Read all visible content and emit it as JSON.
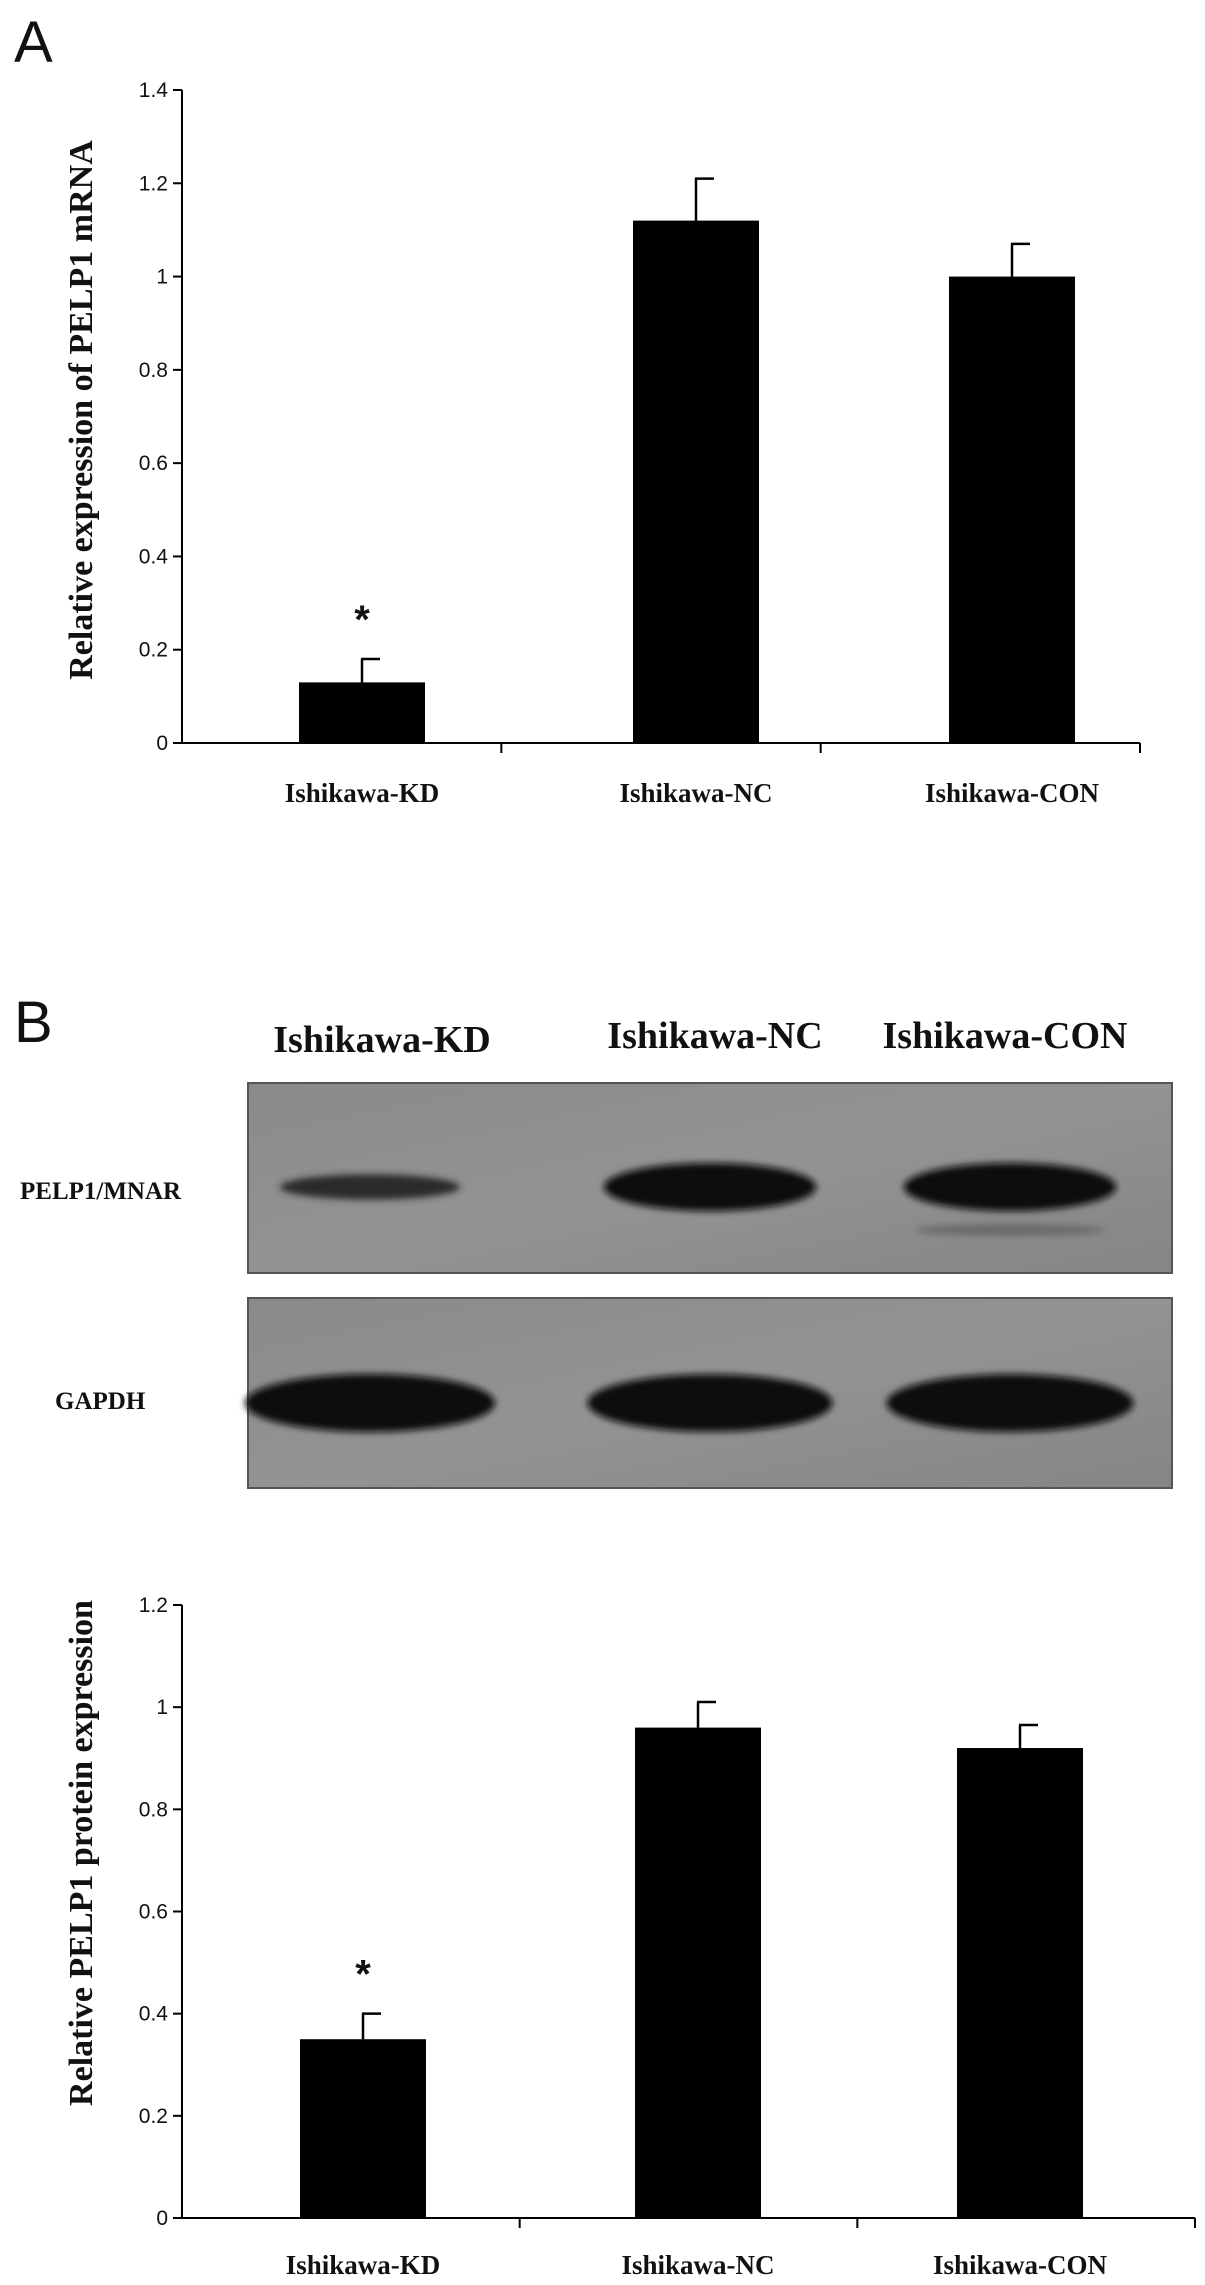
{
  "panels": {
    "a": {
      "letter": "A"
    },
    "b": {
      "letter": "B"
    }
  },
  "chart_data": [
    {
      "type": "bar",
      "panel": "A",
      "categories": [
        "Ishikawa-KD",
        "Ishikawa-NC",
        "Ishikawa-CON"
      ],
      "values": [
        0.13,
        1.12,
        1.0
      ],
      "errors": [
        0.05,
        0.09,
        0.07
      ],
      "significance": [
        "*",
        "",
        ""
      ],
      "ylabel": "Relative expression of PELP1 mRNA",
      "ylim": [
        0,
        1.4
      ],
      "yticks": [
        0,
        0.2,
        0.4,
        0.6,
        0.8,
        1,
        1.2,
        1.4
      ],
      "bar_color": "#000000"
    },
    {
      "type": "bar",
      "panel": "B",
      "categories": [
        "Ishikawa-KD",
        "Ishikawa-NC",
        "Ishikawa-CON"
      ],
      "values": [
        0.35,
        0.96,
        0.92
      ],
      "errors": [
        0.05,
        0.05,
        0.045
      ],
      "significance": [
        "*",
        "",
        ""
      ],
      "ylabel": "Relative PELP1 protein expression",
      "ylim": [
        0,
        1.2
      ],
      "yticks": [
        0,
        0.2,
        0.4,
        0.6,
        0.8,
        1,
        1.2
      ],
      "bar_color": "#000000"
    }
  ],
  "blot": {
    "lanes": [
      "Ishikawa-KD",
      "Ishikawa-NC",
      "Ishikawa-CON"
    ],
    "rows": [
      {
        "label": "PELP1/MNAR",
        "intensities": [
          0.35,
          0.95,
          0.95
        ]
      },
      {
        "label": "GAPDH",
        "intensities": [
          1.0,
          0.92,
          0.95
        ]
      }
    ]
  }
}
